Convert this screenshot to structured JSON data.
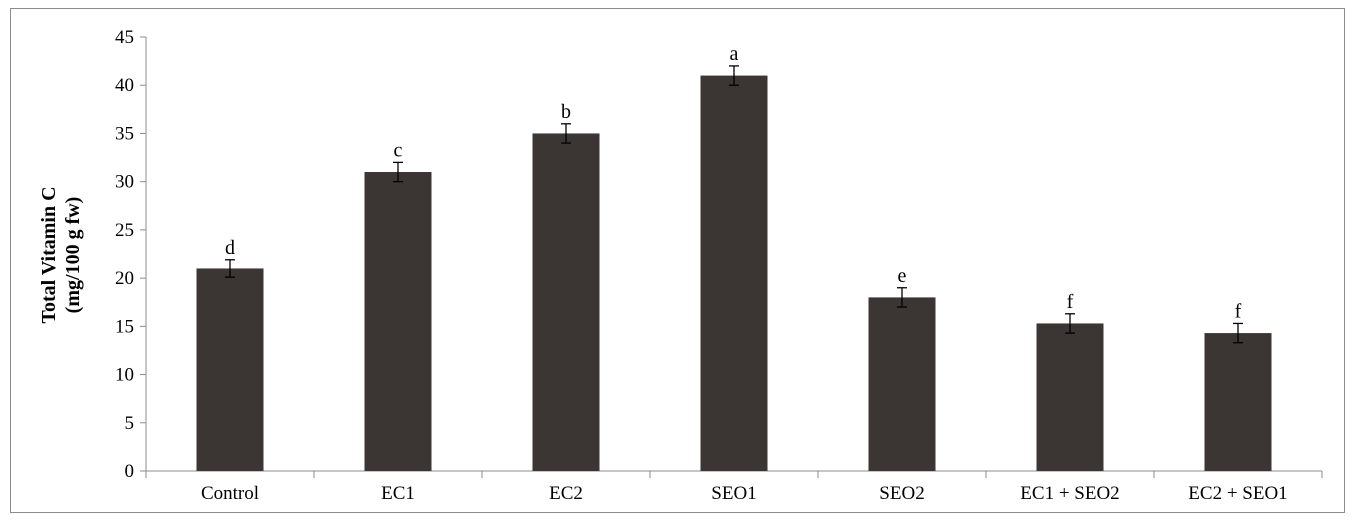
{
  "chart_data": {
    "type": "bar",
    "title": "",
    "xlabel": "",
    "ylabel": [
      "Total Vitamin C",
      "(mg/100 g fw)"
    ],
    "categories": [
      "Control",
      "EC1",
      "EC2",
      "SEO1",
      "SEO2",
      "EC1 + SEO2",
      "EC2 + SEO1"
    ],
    "values": [
      21.0,
      31.0,
      35.0,
      41.0,
      18.0,
      15.3,
      14.3
    ],
    "errors": [
      0.9,
      1.0,
      1.0,
      1.0,
      1.0,
      1.0,
      1.0
    ],
    "significance": [
      "d",
      "c",
      "b",
      "a",
      "e",
      "f",
      "f"
    ],
    "ylim": [
      0,
      45
    ],
    "yticks": [
      0,
      5,
      10,
      15,
      20,
      25,
      30,
      35,
      40,
      45
    ],
    "grid": false,
    "legend": "none",
    "bar_color": "#3b3534"
  }
}
